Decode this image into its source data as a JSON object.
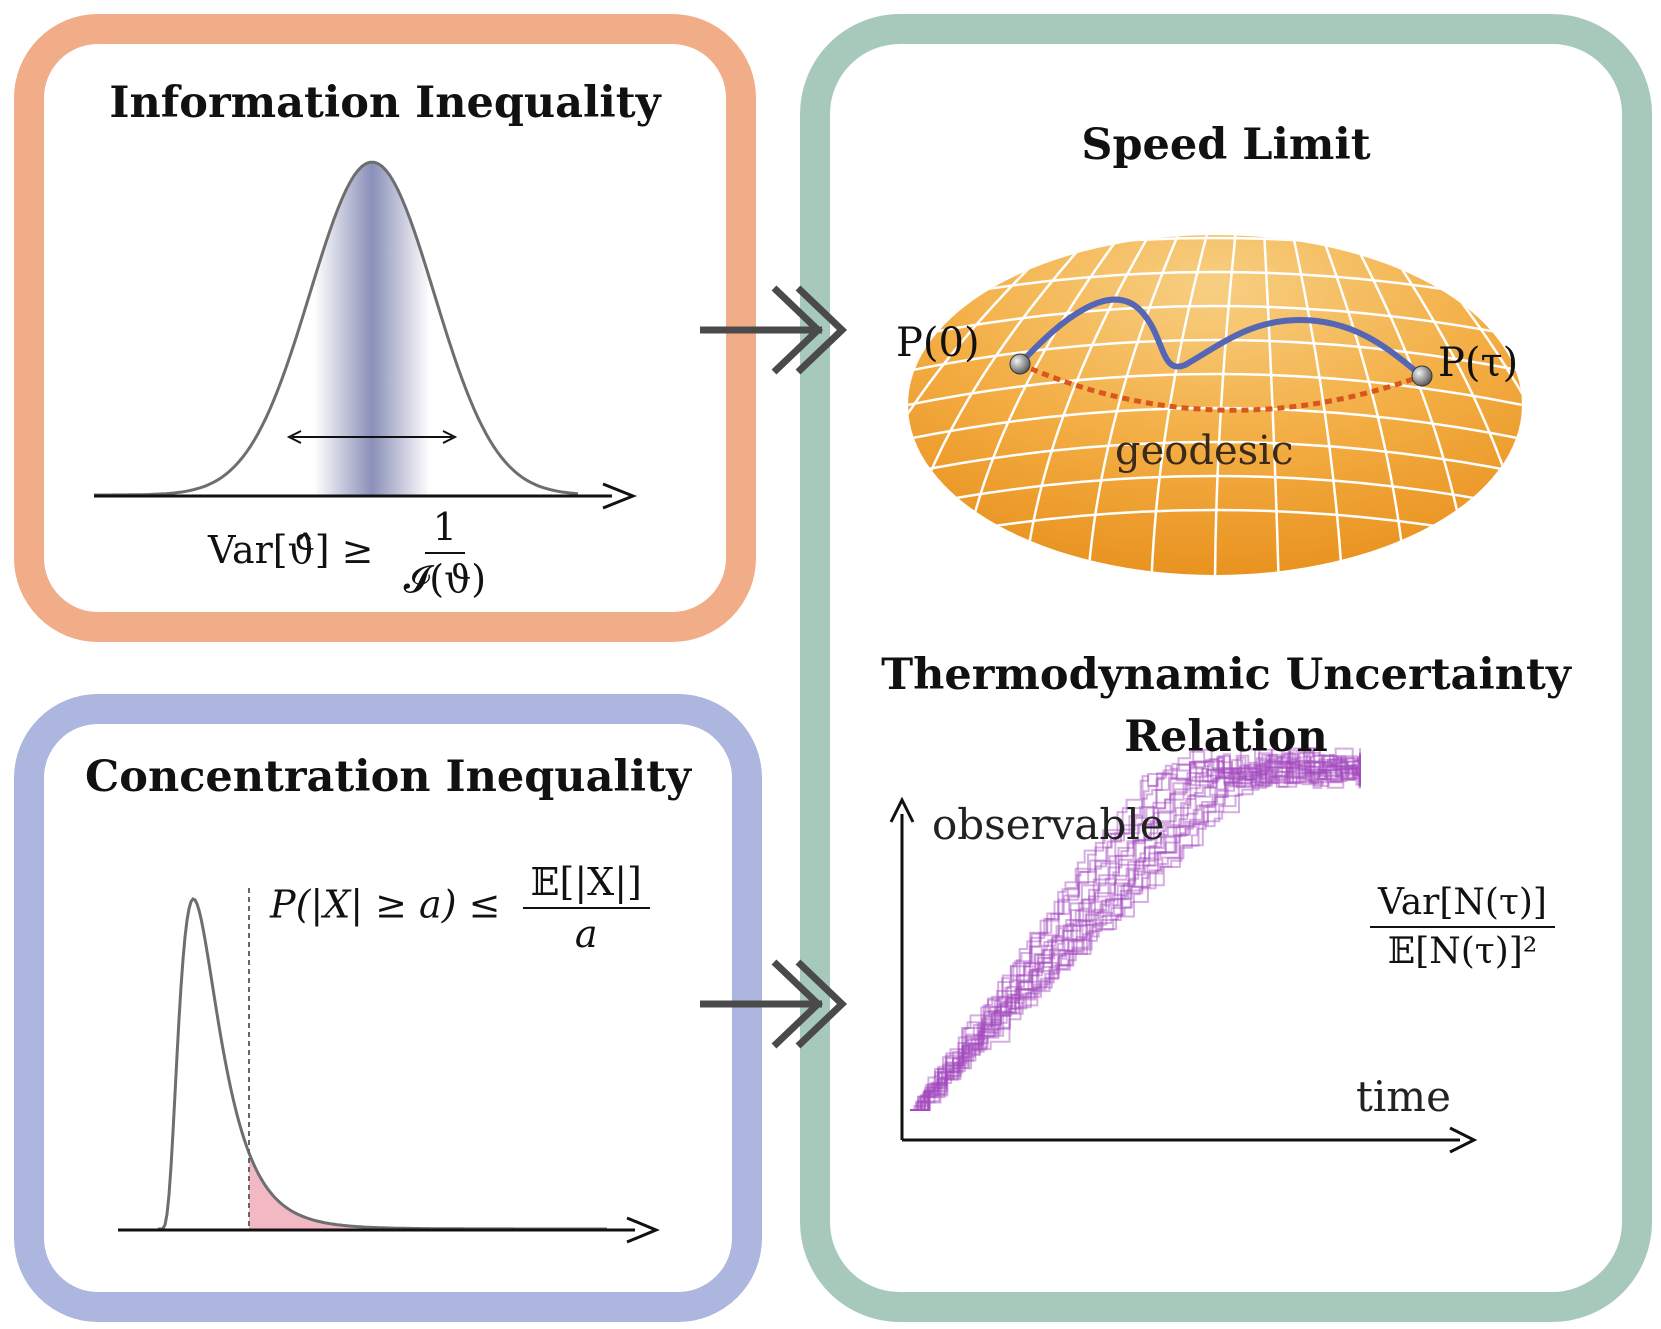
{
  "panels": {
    "information": {
      "title": "Information Inequality",
      "formula": {
        "lhs": "Var[ϑ̂] ≥",
        "numerator": "1",
        "denominator": "𝓘(ϑ)"
      }
    },
    "concentration": {
      "title": "Concentration Inequality",
      "formula": {
        "lhs": "P(|X| ≥ a) ≤",
        "numerator": "𝔼[|X|]",
        "denominator": "a"
      }
    },
    "speed_limit": {
      "title": "Speed Limit",
      "start_label": "P(0)",
      "end_label": "P(τ)",
      "geodesic_label": "geodesic"
    },
    "tur": {
      "title_line1": "Thermodynamic Uncertainty",
      "title_line2": "Relation",
      "y_axis_label": "observable",
      "x_axis_label": "time",
      "formula": {
        "numerator": "Var[N(τ)]",
        "denominator": "𝔼[N(τ)]²"
      }
    }
  },
  "colors": {
    "information_border": "#f1ac88",
    "concentration_border": "#adb6df",
    "right_border": "#a7c9bb",
    "sphere_fill": "#f3a93a",
    "path_curve": "#5566b5",
    "geodesic_dash": "#d9571c",
    "trajectory": "#a44cbf",
    "tail_fill": "#f2b8c3",
    "arrow": "#4a4a4a"
  },
  "icons": [
    "double-chevron-arrow-icon",
    "axis-arrow-icon",
    "double-headed-arrow-icon"
  ]
}
